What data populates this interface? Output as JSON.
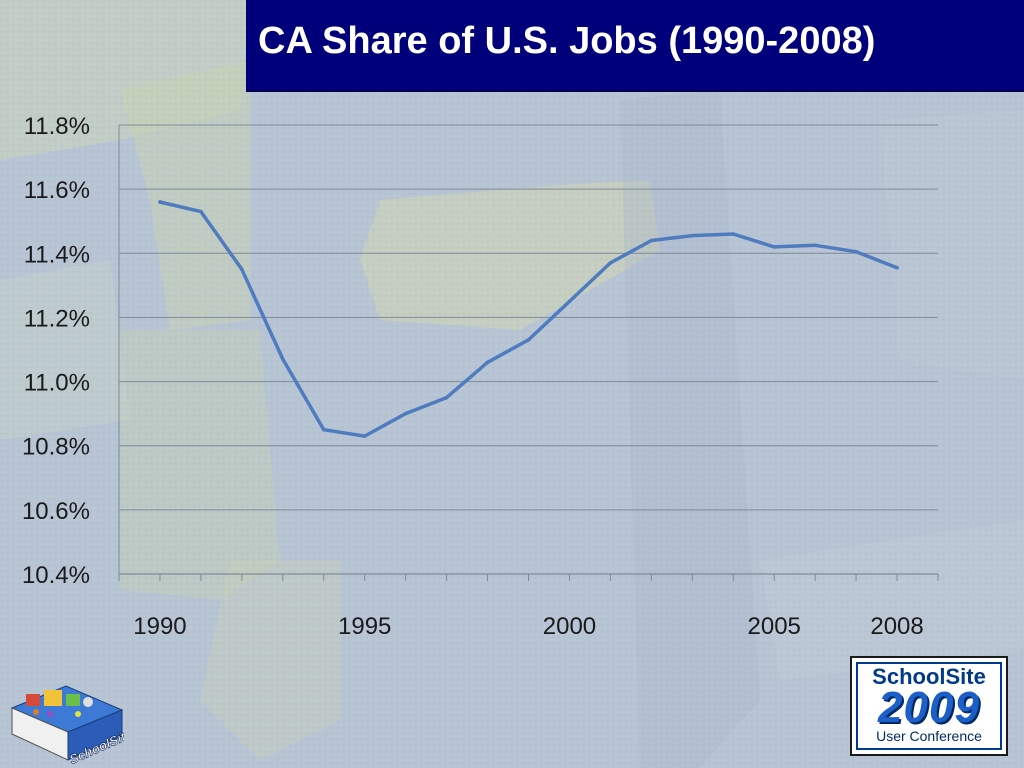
{
  "slide": {
    "title": "CA Share of U.S. Jobs (1990-2008)"
  },
  "badge": {
    "line1": "SchoolSite",
    "line2": "2009",
    "line3": "User Conference"
  },
  "logo": {
    "text": "SchoolSite"
  },
  "colors": {
    "title_bg": "#00007a",
    "line": "#4f7bbf",
    "grid": "#7f8a99"
  },
  "chart_data": {
    "type": "line",
    "title": "",
    "xlabel": "",
    "ylabel": "",
    "x": [
      1990,
      1991,
      1992,
      1993,
      1994,
      1995,
      1996,
      1997,
      1998,
      1999,
      2000,
      2001,
      2002,
      2003,
      2004,
      2005,
      2006,
      2007,
      2008
    ],
    "x_tick_labels": [
      "1990",
      "1995",
      "2000",
      "2005",
      "2008"
    ],
    "x_tick_years": [
      1990,
      1995,
      2000,
      2005,
      2008
    ],
    "series": [
      {
        "values": [
          11.56,
          11.53,
          11.35,
          11.07,
          10.85,
          10.83,
          10.9,
          10.95,
          11.06,
          11.13,
          11.25,
          11.37,
          11.44,
          11.455,
          11.46,
          11.42,
          11.425,
          11.405,
          11.355
        ]
      }
    ],
    "ylim": [
      10.4,
      11.8
    ],
    "y_ticks": [
      10.4,
      10.6,
      10.8,
      11.0,
      11.2,
      11.4,
      11.6,
      11.8
    ],
    "y_tick_labels": [
      "10.4%",
      "10.6%",
      "10.8%",
      "11.0%",
      "11.2%",
      "11.4%",
      "11.6%",
      "11.8%"
    ],
    "grid": true,
    "legend": "none"
  }
}
